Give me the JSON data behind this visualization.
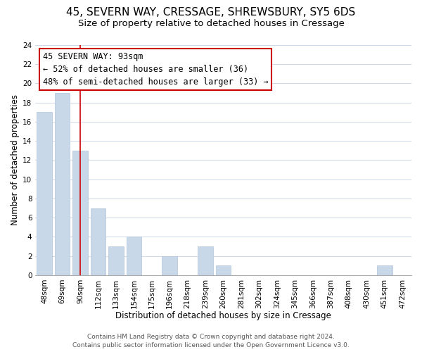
{
  "title": "45, SEVERN WAY, CRESSAGE, SHREWSBURY, SY5 6DS",
  "subtitle": "Size of property relative to detached houses in Cressage",
  "xlabel": "Distribution of detached houses by size in Cressage",
  "ylabel": "Number of detached properties",
  "bar_color": "#c8d8e8",
  "bar_edge_color": "#b0c4d8",
  "grid_color": "#d0d8e8",
  "marker_line_color": "#cc0000",
  "annotation_box_edge": "#cc0000",
  "bin_labels": [
    "48sqm",
    "69sqm",
    "90sqm",
    "112sqm",
    "133sqm",
    "154sqm",
    "175sqm",
    "196sqm",
    "218sqm",
    "239sqm",
    "260sqm",
    "281sqm",
    "302sqm",
    "324sqm",
    "345sqm",
    "366sqm",
    "387sqm",
    "408sqm",
    "430sqm",
    "451sqm",
    "472sqm"
  ],
  "bin_counts": [
    17,
    19,
    13,
    7,
    3,
    4,
    0,
    2,
    0,
    3,
    1,
    0,
    0,
    0,
    0,
    0,
    0,
    0,
    0,
    1,
    0
  ],
  "marker_bin_index": 2,
  "ylim": [
    0,
    24
  ],
  "yticks": [
    0,
    2,
    4,
    6,
    8,
    10,
    12,
    14,
    16,
    18,
    20,
    22,
    24
  ],
  "annotation_title": "45 SEVERN WAY: 93sqm",
  "annotation_line1": "← 52% of detached houses are smaller (36)",
  "annotation_line2": "48% of semi-detached houses are larger (33) →",
  "footer_line1": "Contains HM Land Registry data © Crown copyright and database right 2024.",
  "footer_line2": "Contains public sector information licensed under the Open Government Licence v3.0.",
  "title_fontsize": 11,
  "subtitle_fontsize": 9.5,
  "axis_label_fontsize": 8.5,
  "tick_fontsize": 7.5,
  "annotation_fontsize": 8.5,
  "footer_fontsize": 6.5
}
